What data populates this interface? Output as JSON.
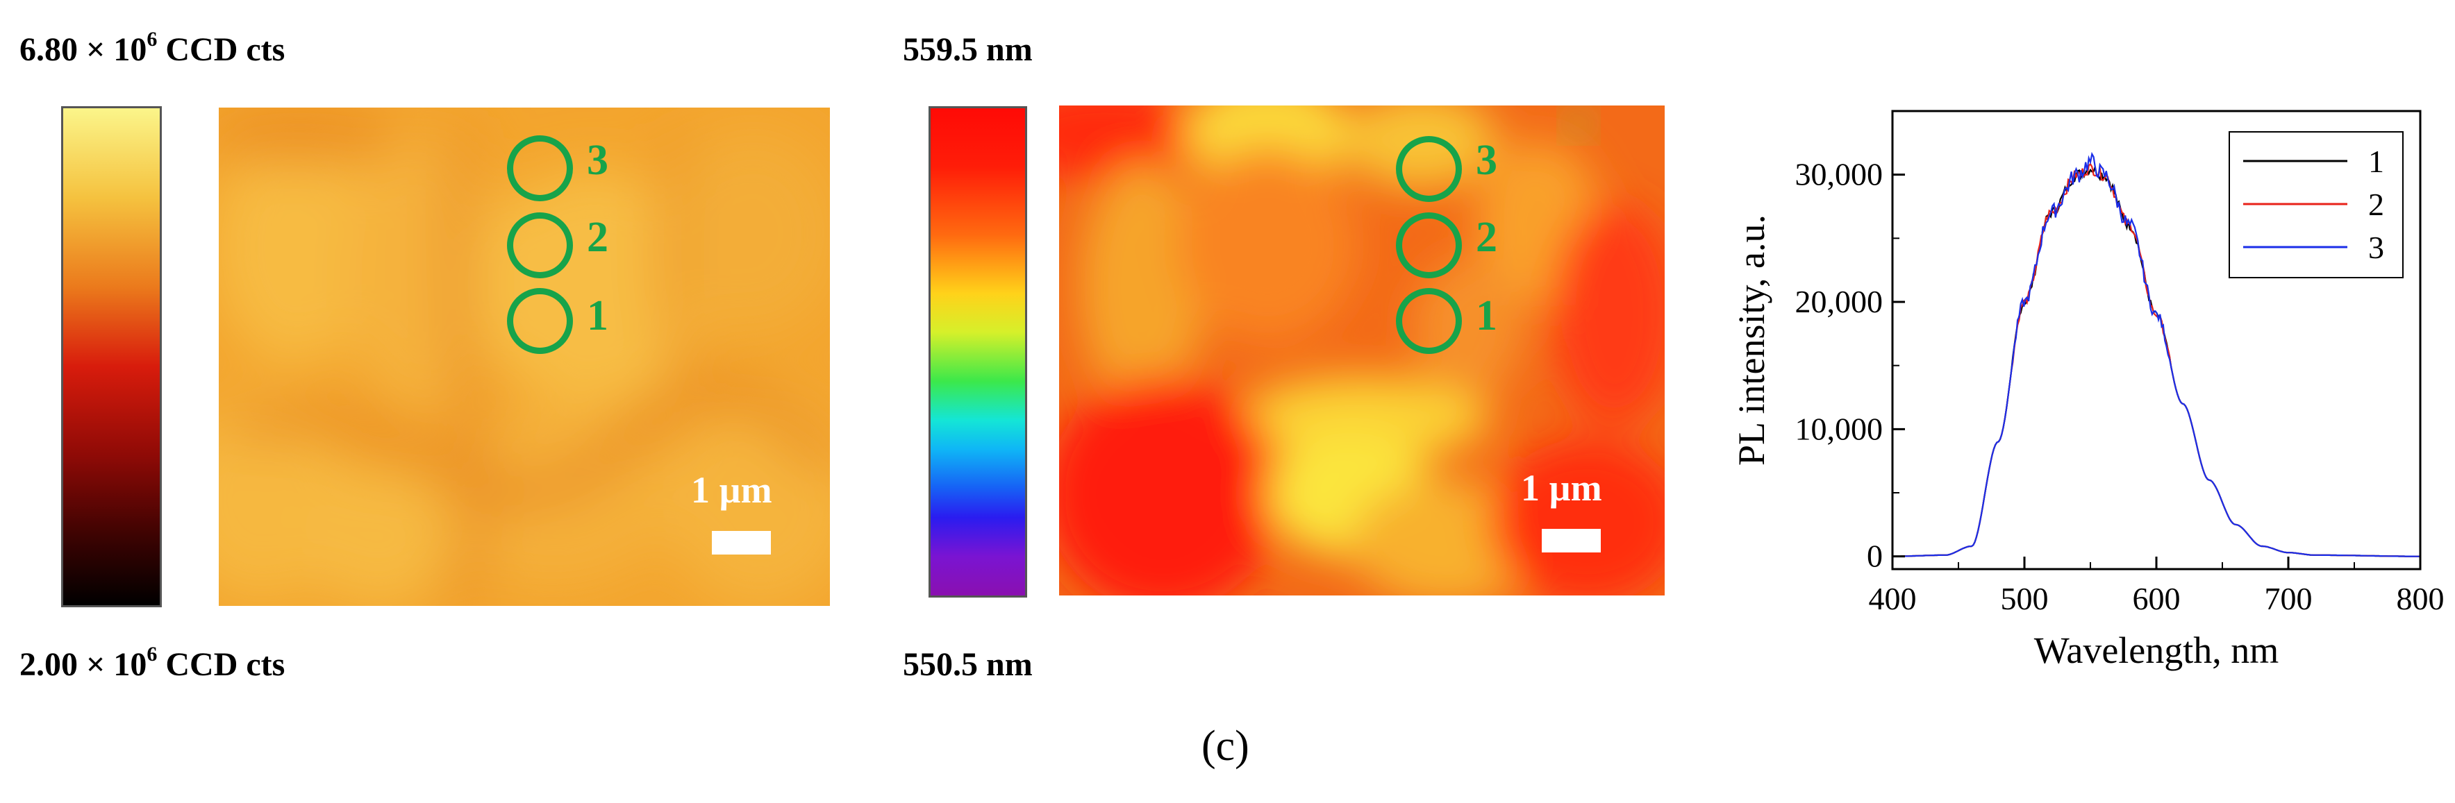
{
  "panel_label": "(c)",
  "intensity_map": {
    "colorbar_max_prefix": "6.80 × 10",
    "colorbar_max_exp": "6",
    "colorbar_max_suffix": " CCD cts",
    "colorbar_min_prefix": "2.00 × 10",
    "colorbar_min_exp": "6",
    "colorbar_min_suffix": " CCD cts",
    "scale_bar": "1 µm",
    "markers": [
      "3",
      "2",
      "1"
    ],
    "colors": {
      "low": "#000000",
      "mid": "#d81c0c",
      "high": "#fbf58a",
      "map_base": "#f3a52e"
    }
  },
  "wavelength_map": {
    "colorbar_max": "559.5 nm",
    "colorbar_min": "550.5 nm",
    "scale_bar": "1 µm",
    "markers": [
      "3",
      "2",
      "1"
    ],
    "colors": {
      "map_base": "#f36a18",
      "hot": "#ff2a10",
      "warm": "#fde63a"
    }
  },
  "chart_data": {
    "type": "line",
    "title": "",
    "xlabel": "Wavelength, nm",
    "ylabel": "PL intensity, a.u.",
    "xlim": [
      400,
      800
    ],
    "ylim": [
      -1000,
      35000
    ],
    "xticks": [
      400,
      500,
      600,
      700,
      800
    ],
    "xtick_labels": [
      "400",
      "500",
      "600",
      "700",
      "800"
    ],
    "yticks": [
      0,
      10000,
      20000,
      30000
    ],
    "ytick_labels": [
      "0",
      "10,000",
      "20,000",
      "30,000"
    ],
    "legend_position": "top-right",
    "x": [
      400,
      440,
      460,
      480,
      500,
      520,
      540,
      550,
      560,
      580,
      600,
      620,
      640,
      660,
      680,
      700,
      720,
      800
    ],
    "series": [
      {
        "name": "1",
        "color": "#000000",
        "values": [
          0,
          100,
          800,
          9000,
          20000,
          27000,
          30000,
          30500,
          30000,
          26000,
          19000,
          12000,
          6000,
          2500,
          800,
          300,
          100,
          0
        ]
      },
      {
        "name": "2",
        "color": "#e8221a",
        "values": [
          0,
          100,
          800,
          9000,
          20000,
          27000,
          30000,
          30500,
          30000,
          26000,
          19000,
          12000,
          6000,
          2500,
          800,
          300,
          100,
          0
        ]
      },
      {
        "name": "3",
        "color": "#1a2ee8",
        "values": [
          0,
          100,
          800,
          9000,
          20000,
          27000,
          30000,
          31000,
          30000,
          26000,
          19000,
          12000,
          6000,
          2500,
          800,
          300,
          100,
          0
        ]
      }
    ]
  }
}
